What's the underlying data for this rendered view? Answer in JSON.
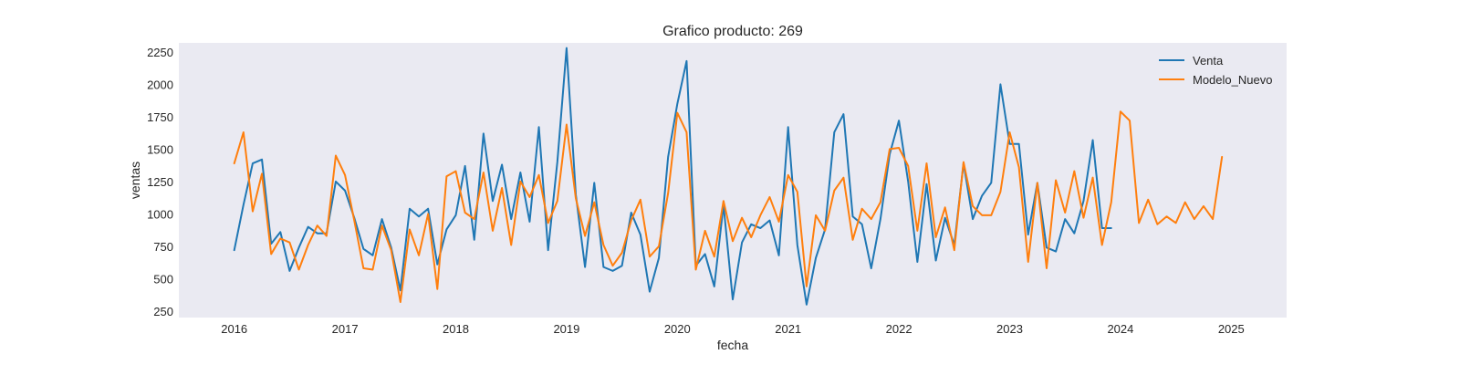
{
  "chart_data": {
    "type": "line",
    "title": "Grafico producto: 269",
    "xlabel": "fecha",
    "ylabel": "ventas",
    "x_start": "2016-01",
    "x_step": "month",
    "xlim": [
      "2015-07",
      "2025-07"
    ],
    "ylim": [
      200,
      2320
    ],
    "x_ticks": [
      "2016",
      "2017",
      "2018",
      "2019",
      "2020",
      "2021",
      "2022",
      "2023",
      "2024",
      "2025"
    ],
    "y_ticks": [
      250,
      500,
      750,
      1000,
      1250,
      1500,
      1750,
      2000,
      2250
    ],
    "grid": false,
    "legend_position": "top-right",
    "background_color": "#eaeaf2",
    "series": [
      {
        "name": "Venta",
        "color": "#1f77b4",
        "values": [
          720,
          1070,
          1390,
          1420,
          770,
          860,
          560,
          740,
          900,
          850,
          850,
          1250,
          1180,
          970,
          730,
          680,
          960,
          740,
          410,
          1040,
          980,
          1040,
          610,
          880,
          990,
          1370,
          800,
          1620,
          1100,
          1380,
          960,
          1320,
          940,
          1670,
          720,
          1400,
          2280,
          1150,
          590,
          1240,
          590,
          560,
          600,
          1010,
          840,
          400,
          660,
          1440,
          1850,
          2180,
          600,
          690,
          440,
          1070,
          340,
          780,
          920,
          890,
          950,
          680,
          1670,
          760,
          300,
          660,
          880,
          1630,
          1770,
          980,
          920,
          580,
          960,
          1460,
          1720,
          1250,
          630,
          1230,
          640,
          970,
          760,
          1390,
          960,
          1140,
          1240,
          2000,
          1540,
          1540,
          840,
          1240,
          740,
          710,
          960,
          850,
          1100,
          1570,
          890,
          890
        ]
      },
      {
        "name": "Modelo_Nuevo",
        "color": "#ff7f0e",
        "values": [
          1390,
          1630,
          1020,
          1310,
          690,
          810,
          780,
          570,
          760,
          910,
          830,
          1450,
          1300,
          950,
          580,
          570,
          910,
          720,
          320,
          880,
          680,
          1000,
          420,
          1290,
          1330,
          1010,
          960,
          1320,
          870,
          1200,
          760,
          1250,
          1130,
          1300,
          930,
          1100,
          1690,
          1120,
          830,
          1090,
          760,
          600,
          700,
          950,
          1110,
          670,
          750,
          1160,
          1780,
          1630,
          570,
          870,
          670,
          1100,
          790,
          970,
          820,
          990,
          1130,
          940,
          1300,
          1170,
          440,
          990,
          870,
          1180,
          1280,
          800,
          1040,
          960,
          1090,
          1500,
          1510,
          1370,
          870,
          1390,
          820,
          1050,
          720,
          1400,
          1060,
          990,
          990,
          1170,
          1630,
          1360,
          630,
          1240,
          580,
          1260,
          1010,
          1330,
          970,
          1280,
          760,
          1090,
          1790,
          1720,
          930,
          1110,
          920,
          980,
          930,
          1090,
          960,
          1060,
          960,
          1440
        ]
      }
    ]
  }
}
